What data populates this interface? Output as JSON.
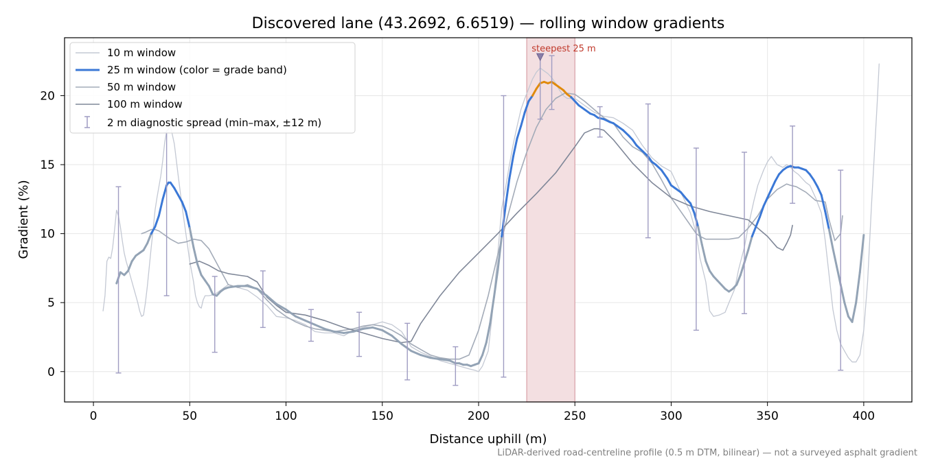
{
  "chart_data": {
    "type": "line",
    "title": "Discovered lane (43.2692, 6.6519) — rolling window gradients",
    "xlabel": "Distance uphill (m)",
    "ylabel": "Gradient (%)",
    "xlim": [
      -15,
      425
    ],
    "ylim": [
      -2.2,
      24.2
    ],
    "xticks": [
      0,
      50,
      100,
      150,
      200,
      250,
      300,
      350,
      400
    ],
    "yticks": [
      0,
      5,
      10,
      15,
      20
    ],
    "grid": true,
    "legend_position": "top-left",
    "footnote": "LiDAR-derived road-centreline profile (0.5 m DTM, bilinear) — not a surveyed asphalt gradient",
    "highlight": {
      "x_range": [
        225,
        250
      ],
      "label": "steepest 25 m",
      "marker_x": 232,
      "marker_y": 22.8,
      "color": "#d9a0a6"
    },
    "series": [
      {
        "name": "10 m window",
        "color": "#c3c8d3",
        "width": 1.3,
        "x": [
          5,
          6,
          7,
          8,
          9,
          10,
          11,
          12,
          13,
          14,
          15,
          16,
          17,
          18,
          19,
          20,
          21,
          22,
          23,
          24,
          25,
          26,
          27,
          28,
          29,
          30,
          31,
          32,
          33,
          34,
          35,
          36,
          37,
          38,
          39,
          40,
          42,
          44,
          46,
          48,
          50,
          52,
          53,
          54,
          55,
          56,
          57,
          58,
          60,
          63,
          65,
          70,
          75,
          80,
          85,
          90,
          95,
          100,
          105,
          110,
          115,
          120,
          125,
          130,
          135,
          140,
          145,
          150,
          155,
          160,
          165,
          170,
          175,
          180,
          185,
          190,
          195,
          198,
          200,
          202,
          205,
          207,
          210,
          212,
          214,
          216,
          218,
          220,
          222,
          224,
          226,
          228,
          230,
          232,
          234,
          236,
          238,
          240,
          242,
          244,
          246,
          248,
          250,
          252,
          255,
          260,
          265,
          270,
          275,
          280,
          285,
          290,
          295,
          300,
          305,
          310,
          313,
          315,
          318,
          320,
          322,
          325,
          328,
          330,
          333,
          335,
          338,
          340,
          343,
          345,
          348,
          350,
          352,
          355,
          358,
          360,
          362,
          364,
          366,
          368,
          370,
          372,
          375,
          378,
          380,
          382,
          384,
          386,
          388,
          390,
          392,
          394,
          396,
          398,
          400,
          402,
          404,
          406,
          407,
          408
        ],
        "y": [
          4.4,
          5.5,
          8.0,
          8.3,
          8.2,
          9.0,
          10.3,
          11.7,
          11.3,
          10.5,
          9.5,
          8.6,
          8.0,
          7.5,
          7.0,
          6.5,
          6.0,
          5.5,
          5.0,
          4.4,
          4.0,
          4.1,
          5.0,
          6.2,
          7.6,
          9.0,
          10.3,
          11.7,
          12.6,
          13.4,
          14.2,
          15.3,
          16.6,
          17.4,
          17.6,
          17.8,
          16.5,
          14.2,
          12.0,
          10.0,
          8.0,
          6.5,
          5.5,
          5.0,
          4.7,
          4.6,
          5.2,
          5.5,
          5.5,
          5.6,
          5.8,
          6.3,
          6.1,
          5.9,
          5.4,
          4.8,
          4.0,
          3.9,
          3.7,
          3.4,
          2.9,
          2.8,
          2.8,
          2.6,
          3.0,
          3.2,
          3.4,
          3.6,
          3.4,
          2.9,
          1.8,
          1.4,
          1.1,
          0.8,
          0.6,
          0.4,
          0.2,
          0.1,
          0.0,
          0.4,
          1.5,
          4.0,
          8.6,
          11.8,
          13.3,
          15.0,
          16.5,
          17.8,
          19.0,
          19.8,
          20.5,
          21.2,
          21.7,
          22.0,
          21.8,
          21.6,
          21.3,
          20.9,
          20.4,
          20.0,
          19.8,
          19.8,
          19.8,
          19.6,
          19.3,
          18.8,
          18.5,
          18.4,
          18.0,
          17.5,
          16.4,
          15.5,
          14.9,
          14.5,
          13.0,
          11.5,
          10.0,
          8.2,
          6.5,
          4.4,
          4.0,
          4.1,
          4.3,
          5.0,
          6.0,
          7.4,
          9.0,
          10.5,
          12.4,
          13.5,
          14.6,
          15.2,
          15.6,
          15.0,
          14.8,
          15.0,
          14.8,
          14.5,
          14.3,
          14.0,
          13.7,
          13.5,
          12.6,
          11.5,
          9.5,
          7.0,
          4.5,
          3.0,
          2.0,
          1.5,
          1.0,
          0.7,
          0.7,
          1.2,
          3.0,
          6.5,
          12.0,
          17.0,
          19.5,
          22.3
        ]
      },
      {
        "name": "25 m window (color = grade band)",
        "color": "#3b78d6",
        "width": 3,
        "grade_band_colors": {
          "low": "#93a3b5",
          "mid": "#3b78d6",
          "high": "#e08a0b"
        },
        "x": [
          12,
          14,
          16,
          18,
          20,
          22,
          24,
          26,
          28,
          30,
          32,
          34,
          36,
          38,
          39,
          40,
          42,
          44,
          46,
          48,
          50,
          52,
          54,
          56,
          58,
          60,
          62,
          64,
          66,
          68,
          70,
          75,
          80,
          85,
          90,
          95,
          100,
          105,
          110,
          115,
          120,
          125,
          130,
          135,
          140,
          145,
          150,
          155,
          160,
          165,
          170,
          175,
          180,
          185,
          188,
          190,
          192,
          194,
          196,
          198,
          200,
          202,
          204,
          206,
          208,
          210,
          212,
          214,
          216,
          218,
          220,
          222,
          224,
          226,
          228,
          230,
          232,
          234,
          236,
          238,
          240,
          242,
          244,
          246,
          248,
          250,
          252,
          255,
          258,
          260,
          262,
          265,
          268,
          270,
          272,
          275,
          278,
          280,
          282,
          285,
          288,
          290,
          292,
          295,
          298,
          300,
          302,
          305,
          308,
          310,
          312,
          314,
          316,
          318,
          320,
          322,
          324,
          326,
          328,
          330,
          332,
          334,
          336,
          338,
          340,
          342,
          344,
          346,
          348,
          350,
          352,
          354,
          356,
          358,
          360,
          362,
          364,
          366,
          368,
          370,
          372,
          374,
          376,
          378,
          380,
          382,
          384,
          386,
          388,
          390,
          392,
          394,
          396,
          398,
          400
        ],
        "y": [
          6.4,
          7.2,
          7.0,
          7.3,
          8.0,
          8.4,
          8.6,
          8.8,
          9.3,
          10.0,
          10.5,
          11.3,
          12.5,
          13.5,
          13.7,
          13.7,
          13.3,
          12.8,
          12.3,
          11.6,
          10.4,
          9.0,
          7.8,
          7.0,
          6.6,
          6.2,
          5.6,
          5.5,
          5.8,
          6.0,
          6.1,
          6.2,
          6.2,
          6.0,
          5.5,
          4.9,
          4.5,
          4.0,
          3.7,
          3.4,
          3.1,
          2.9,
          2.8,
          2.9,
          3.1,
          3.2,
          3.0,
          2.6,
          2.0,
          1.5,
          1.2,
          1.0,
          0.9,
          0.8,
          0.6,
          0.6,
          0.5,
          0.5,
          0.4,
          0.5,
          0.6,
          1.2,
          2.1,
          3.5,
          5.4,
          7.4,
          9.8,
          12.0,
          14.0,
          15.6,
          16.9,
          17.8,
          18.8,
          19.6,
          20.0,
          20.5,
          20.9,
          21.0,
          20.9,
          21.0,
          20.8,
          20.6,
          20.4,
          20.1,
          19.9,
          19.6,
          19.3,
          19.0,
          18.7,
          18.6,
          18.4,
          18.3,
          18.1,
          18.0,
          17.8,
          17.5,
          17.1,
          16.8,
          16.4,
          16.0,
          15.6,
          15.2,
          15.0,
          14.6,
          14.0,
          13.5,
          13.3,
          13.0,
          12.5,
          12.2,
          11.5,
          10.5,
          9.2,
          8.0,
          7.3,
          6.9,
          6.6,
          6.3,
          6.0,
          5.8,
          6.0,
          6.3,
          7.0,
          7.9,
          8.8,
          9.8,
          10.5,
          11.2,
          12.0,
          12.6,
          13.2,
          13.8,
          14.3,
          14.6,
          14.8,
          14.9,
          14.8,
          14.8,
          14.7,
          14.6,
          14.3,
          13.9,
          13.4,
          12.8,
          11.6,
          10.3,
          8.9,
          7.6,
          6.3,
          5.0,
          4.0,
          3.6,
          5.0,
          7.2,
          9.9
        ]
      },
      {
        "name": "50 m window",
        "color": "#a3abb8",
        "width": 1.6,
        "x": [
          25,
          27,
          30,
          32,
          34,
          36,
          40,
          44,
          48,
          52,
          56,
          60,
          65,
          70,
          75,
          80,
          85,
          90,
          95,
          100,
          105,
          110,
          115,
          120,
          125,
          130,
          135,
          140,
          145,
          150,
          155,
          160,
          165,
          170,
          175,
          180,
          185,
          190,
          195,
          200,
          205,
          210,
          215,
          220,
          225,
          230,
          235,
          240,
          245,
          250,
          255,
          260,
          265,
          270,
          275,
          280,
          285,
          290,
          295,
          300,
          305,
          310,
          313,
          315,
          318,
          320,
          325,
          330,
          335,
          340,
          345,
          350,
          355,
          360,
          362,
          365,
          370,
          375,
          380,
          382,
          385,
          388,
          389
        ],
        "y": [
          10.0,
          10.1,
          10.3,
          10.3,
          10.2,
          10.0,
          9.6,
          9.3,
          9.4,
          9.6,
          9.5,
          8.9,
          7.6,
          6.3,
          6.1,
          6.3,
          6.0,
          5.2,
          4.5,
          4.0,
          3.6,
          3.3,
          3.1,
          3.0,
          2.9,
          3.0,
          3.1,
          3.3,
          3.4,
          3.3,
          3.0,
          2.6,
          2.0,
          1.6,
          1.2,
          1.0,
          0.9,
          0.9,
          1.2,
          3.0,
          5.5,
          8.5,
          11.2,
          13.8,
          15.9,
          17.7,
          19.0,
          19.8,
          20.2,
          20.1,
          19.6,
          19.0,
          18.4,
          18.0,
          17.0,
          16.3,
          15.9,
          15.1,
          13.9,
          12.6,
          11.6,
          10.6,
          10.0,
          9.8,
          9.6,
          9.6,
          9.6,
          9.6,
          9.7,
          10.4,
          11.3,
          12.5,
          13.2,
          13.6,
          13.5,
          13.4,
          13.0,
          12.4,
          12.3,
          11.0,
          9.5,
          10.0,
          11.3
        ]
      },
      {
        "name": "100 m window",
        "color": "#7f8798",
        "width": 1.6,
        "x": [
          50,
          55,
          60,
          65,
          70,
          75,
          80,
          85,
          90,
          95,
          100,
          110,
          120,
          130,
          140,
          150,
          160,
          165,
          170,
          180,
          190,
          200,
          210,
          220,
          230,
          240,
          250,
          255,
          260,
          262,
          265,
          270,
          280,
          290,
          300,
          310,
          320,
          330,
          340,
          345,
          350,
          355,
          358,
          360,
          362,
          363
        ],
        "y": [
          7.8,
          8.0,
          7.7,
          7.3,
          7.1,
          7.0,
          6.9,
          6.5,
          5.4,
          4.8,
          4.3,
          4.1,
          3.7,
          3.2,
          2.8,
          2.4,
          2.1,
          2.2,
          3.5,
          5.5,
          7.2,
          8.6,
          10.0,
          11.5,
          12.9,
          14.4,
          16.3,
          17.3,
          17.6,
          17.6,
          17.5,
          16.8,
          15.1,
          13.7,
          12.6,
          12.0,
          11.6,
          11.3,
          11.0,
          10.4,
          9.8,
          9.0,
          8.8,
          9.3,
          9.9,
          10.6
        ]
      }
    ],
    "error_bars": {
      "name": "2 m diagnostic spread (min–max, ±12 m)",
      "color": "#9f9cc2",
      "x": [
        13,
        38,
        63,
        88,
        113,
        138,
        163,
        188,
        213,
        232,
        238,
        263,
        288,
        313,
        338,
        363,
        388
      ],
      "y": [
        6.6,
        13.6,
        5.6,
        4.8,
        3.3,
        3.2,
        1.5,
        0.8,
        10.8,
        20.5,
        21.0,
        18.0,
        14.6,
        9.5,
        10.0,
        14.9,
        7.3
      ],
      "low": [
        -0.1,
        5.5,
        1.4,
        3.2,
        2.2,
        1.1,
        -0.6,
        -1.0,
        -0.4,
        18.3,
        19.0,
        17.0,
        9.7,
        3.0,
        4.2,
        12.2,
        0.1
      ],
      "high": [
        13.4,
        17.3,
        6.9,
        7.3,
        4.5,
        4.3,
        3.5,
        1.8,
        20.0,
        22.9,
        22.9,
        19.2,
        19.4,
        16.2,
        15.9,
        17.8,
        14.6
      ]
    }
  }
}
